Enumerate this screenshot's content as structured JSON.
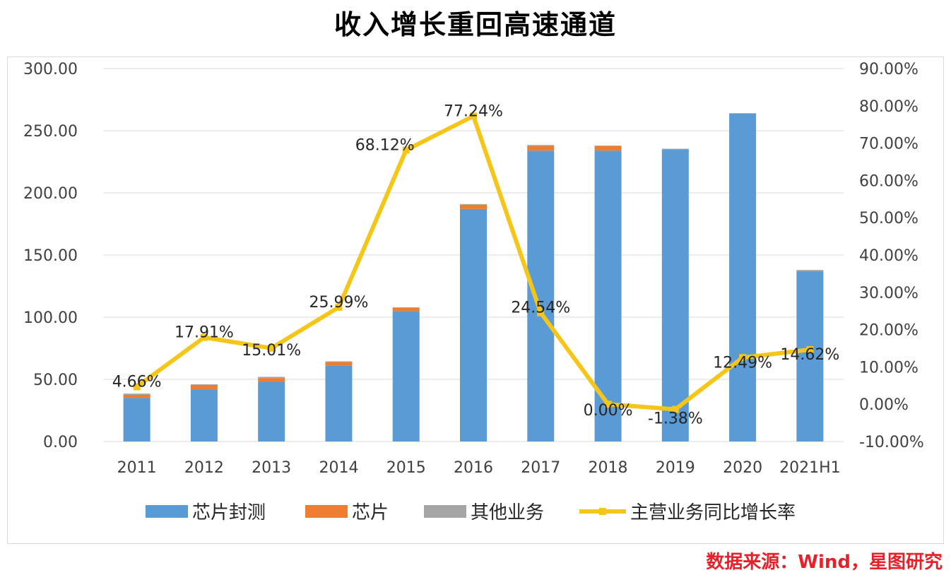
{
  "title": "收入增长重回高速通道",
  "source_text": "数据来源：Wind，星图研究",
  "colors": {
    "bar_main": "#5b9bd5",
    "bar_chip": "#ed7d31",
    "bar_other": "#a5a5a5",
    "line": "#f5c518",
    "grid": "#d9d9d9",
    "axis_text": "#404040"
  },
  "chart_data": {
    "type": "bar",
    "title": "收入增长重回高速通道",
    "categories": [
      "2011",
      "2012",
      "2013",
      "2014",
      "2015",
      "2016",
      "2017",
      "2018",
      "2019",
      "2020",
      "2021H1"
    ],
    "stacked": true,
    "ylim": [
      0,
      300
    ],
    "y_ticks": [
      "0.00",
      "50.00",
      "100.00",
      "150.00",
      "200.00",
      "250.00",
      "300.00"
    ],
    "y2lim": [
      -10,
      90
    ],
    "y2_ticks": [
      "-10.00%",
      "0.00%",
      "10.00%",
      "20.00%",
      "30.00%",
      "40.00%",
      "50.00%",
      "60.00%",
      "70.00%",
      "80.00%",
      "90.00%"
    ],
    "series": [
      {
        "name": "芯片封测",
        "type": "bar",
        "axis": "left",
        "values": [
          35,
          42,
          48,
          61,
          105,
          187,
          234,
          234,
          235,
          264,
          137
        ]
      },
      {
        "name": "芯片",
        "type": "bar",
        "axis": "left",
        "values": [
          2.5,
          3.5,
          3,
          3,
          2.5,
          3.5,
          3.5,
          3.5,
          0,
          0,
          0
        ]
      },
      {
        "name": "其他业务",
        "type": "bar",
        "axis": "left",
        "values": [
          1,
          0.5,
          1,
          0.5,
          0.5,
          0.5,
          1,
          0.5,
          0.5,
          0,
          1
        ]
      },
      {
        "name": "主营业务同比增长率",
        "type": "line",
        "axis": "right",
        "values": [
          4.66,
          17.91,
          15.01,
          25.99,
          68.12,
          77.24,
          24.54,
          0.0,
          -1.38,
          12.49,
          14.62
        ],
        "labels": [
          "4.66%",
          "17.91%",
          "15.01%",
          "25.99%",
          "68.12%",
          "77.24%",
          "24.54%",
          "0.00%",
          "-1.38%",
          "12.49%",
          "14.62%"
        ]
      }
    ],
    "legend": [
      "芯片封测",
      "芯片",
      "其他业务",
      "主营业务同比增长率"
    ],
    "legend_position": "bottom",
    "grid": true
  }
}
